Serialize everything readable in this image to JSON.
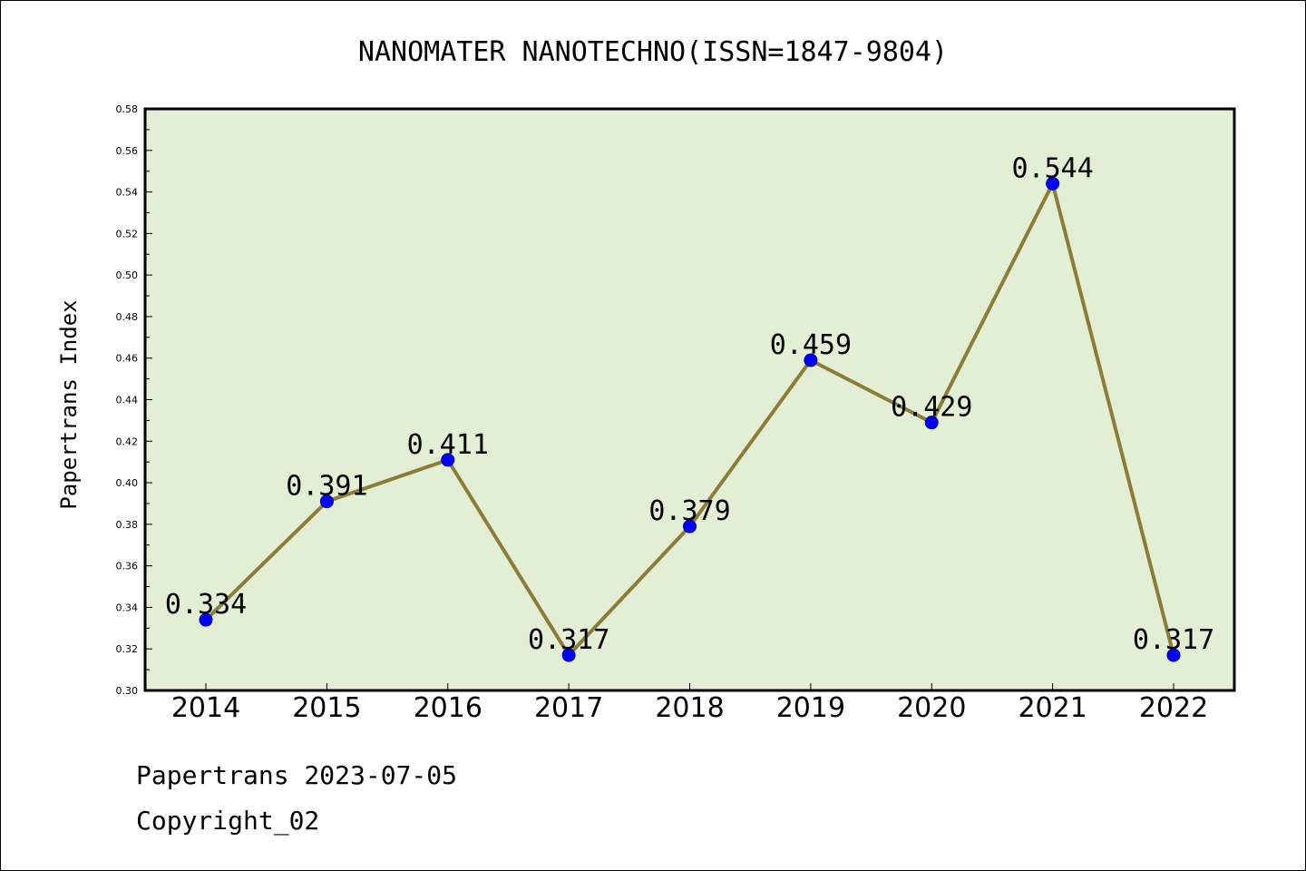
{
  "chart_data": {
    "type": "line",
    "title": "NANOMATER NANOTECHNO(ISSN=1847-9804)",
    "xlabel": "",
    "ylabel": "Papertrans Index",
    "categories": [
      "2014",
      "2015",
      "2016",
      "2017",
      "2018",
      "2019",
      "2020",
      "2021",
      "2022"
    ],
    "values": [
      0.334,
      0.391,
      0.411,
      0.317,
      0.379,
      0.459,
      0.429,
      0.544,
      0.317
    ],
    "data_labels": [
      "0.334",
      "0.391",
      "0.411",
      "0.317",
      "0.379",
      "0.459",
      "0.429",
      "0.544",
      "0.317"
    ],
    "ylim": [
      0.3,
      0.58
    ],
    "yticks": [
      "0.30",
      "0.32",
      "0.34",
      "0.36",
      "0.38",
      "0.40",
      "0.42",
      "0.44",
      "0.46",
      "0.48",
      "0.50",
      "0.52",
      "0.54",
      "0.56",
      "0.58"
    ],
    "grid": false,
    "legend": "none"
  },
  "footer": {
    "line1": "Papertrans 2023-07-05",
    "line2": "Copyright_02"
  },
  "colors": {
    "plot_background": "#e2efd5",
    "line": "#8b7d38",
    "marker": "#0000ff"
  }
}
